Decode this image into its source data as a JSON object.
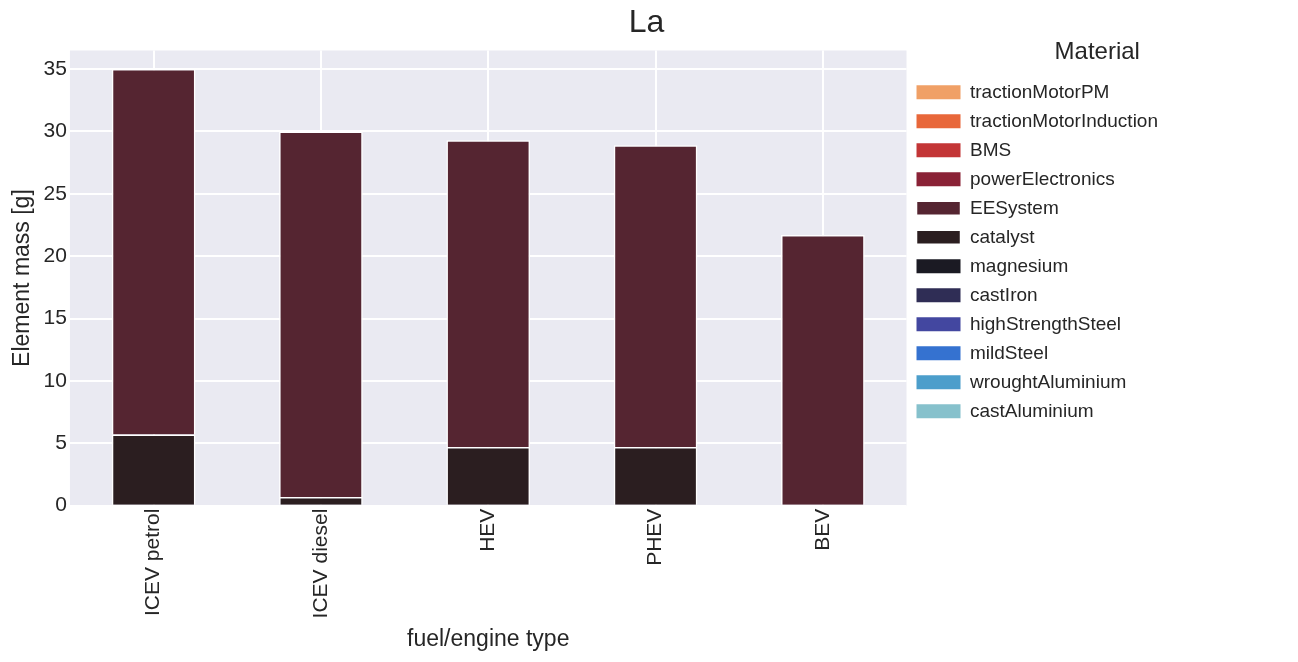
{
  "chart_data": {
    "type": "bar",
    "title": "La",
    "xlabel": "fuel/engine type",
    "ylabel": "Element mass [g]",
    "legend_title": "Material",
    "categories": [
      "ICEV petrol",
      "ICEV diesel",
      "HEV",
      "PHEV",
      "BEV"
    ],
    "stacked": true,
    "ylim": [
      0,
      36.5
    ],
    "yticks": [
      0,
      5,
      10,
      15,
      20,
      25,
      30,
      35
    ],
    "grid": true,
    "legend": "right",
    "series": [
      {
        "name": "castAluminium",
        "color": "#86c1cc",
        "values": [
          0,
          0,
          0,
          0,
          0
        ]
      },
      {
        "name": "wroughtAluminium",
        "color": "#4c9ecb",
        "values": [
          0,
          0,
          0,
          0,
          0
        ]
      },
      {
        "name": "mildSteel",
        "color": "#3572d0",
        "values": [
          0,
          0,
          0,
          0,
          0
        ]
      },
      {
        "name": "highStrengthSteel",
        "color": "#4347a0",
        "values": [
          0,
          0,
          0,
          0,
          0
        ]
      },
      {
        "name": "castIron",
        "color": "#2f2d55",
        "values": [
          0,
          0,
          0,
          0,
          0
        ]
      },
      {
        "name": "magnesium",
        "color": "#1b1a23",
        "values": [
          0,
          0,
          0,
          0,
          0
        ]
      },
      {
        "name": "catalyst",
        "color": "#2b1e20",
        "values": [
          5.7,
          0.7,
          4.7,
          4.7,
          0
        ]
      },
      {
        "name": "EESystem",
        "color": "#552531",
        "values": [
          29.3,
          29.3,
          24.6,
          24.2,
          21.7
        ]
      },
      {
        "name": "powerElectronics",
        "color": "#8a2236",
        "values": [
          0,
          0,
          0,
          0,
          0
        ]
      },
      {
        "name": "BMS",
        "color": "#c33536",
        "values": [
          0,
          0,
          0,
          0,
          0
        ]
      },
      {
        "name": "tractionMotorInduction",
        "color": "#e8673a",
        "values": [
          0,
          0,
          0,
          0,
          0
        ]
      },
      {
        "name": "tractionMotorPM",
        "color": "#f0a066",
        "values": [
          0,
          0,
          0,
          0,
          0
        ]
      }
    ]
  }
}
